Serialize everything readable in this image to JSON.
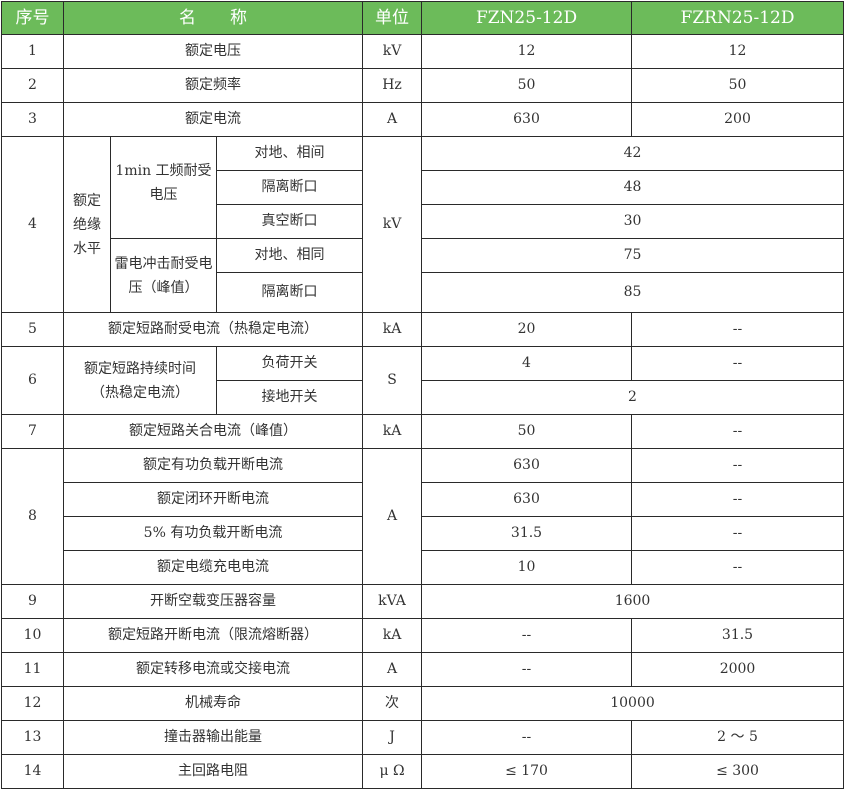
{
  "header": {
    "no": "序号",
    "name": "名　　称",
    "unit": "单位",
    "model1": "FZN25-12D",
    "model2": "FZRN25-12D"
  },
  "header_color": "#6cbb5a",
  "rows": {
    "r1": {
      "no": "1",
      "name": "额定电压",
      "unit": "kV",
      "v1": "12",
      "v2": "12"
    },
    "r2": {
      "no": "2",
      "name": "额定频率",
      "unit": "Hz",
      "v1": "50",
      "v2": "50"
    },
    "r3": {
      "no": "3",
      "name": "额定电流",
      "unit": "A",
      "v1": "630",
      "v2": "200"
    },
    "r4": {
      "no": "4",
      "name": "额定绝缘水平",
      "unit": "kV",
      "g1": "1min 工频耐受电压",
      "g2": "雷电冲击耐受电压（峰值）",
      "s1": "对地、相间",
      "v1": "42",
      "s2": "隔离断口",
      "v2": "48",
      "s3": "真空断口",
      "v3": "30",
      "s4": "对地、相同",
      "v4": "75",
      "s5": "隔离断口",
      "v5": "85"
    },
    "r5": {
      "no": "5",
      "name": "额定短路耐受电流（热稳定电流）",
      "unit": "kA",
      "v1": "20",
      "v2": "--"
    },
    "r6": {
      "no": "6",
      "name": "额定短路持续时间（热稳定电流）",
      "unit": "S",
      "s1": "负荷开关",
      "s1v1": "4",
      "s1v2": "--",
      "s2": "接地开关",
      "s2v": "2"
    },
    "r7": {
      "no": "7",
      "name": "额定短路关合电流（峰值）",
      "unit": "kA",
      "v1": "50",
      "v2": "--"
    },
    "r8": {
      "no": "8",
      "unit": "A",
      "items": [
        {
          "name": "额定有功负载开断电流",
          "v1": "630",
          "v2": "--"
        },
        {
          "name": "额定闭环开断电流",
          "v1": "630",
          "v2": "--"
        },
        {
          "name": "5% 有功负载开断电流",
          "v1": "31.5",
          "v2": "--"
        },
        {
          "name": "额定电缆充电电流",
          "v1": "10",
          "v2": "--"
        }
      ]
    },
    "r9": {
      "no": "9",
      "name": "开断空载变压器容量",
      "unit": "kVA",
      "v": "1600"
    },
    "r10": {
      "no": "10",
      "name": "额定短路开断电流（限流熔断器）",
      "unit": "kA",
      "v1": "--",
      "v2": "31.5"
    },
    "r11": {
      "no": "11",
      "name": "额定转移电流或交接电流",
      "unit": "A",
      "v1": "--",
      "v2": "2000"
    },
    "r12": {
      "no": "12",
      "name": "机械寿命",
      "unit": "次",
      "v": "10000"
    },
    "r13": {
      "no": "13",
      "name": "撞击器输出能量",
      "unit": "J",
      "v1": "--",
      "v2": "2 ～ 5"
    },
    "r14": {
      "no": "14",
      "name": "主回路电阻",
      "unit": "μ Ω",
      "v1": "≤ 170",
      "v2": "≤ 300"
    }
  }
}
